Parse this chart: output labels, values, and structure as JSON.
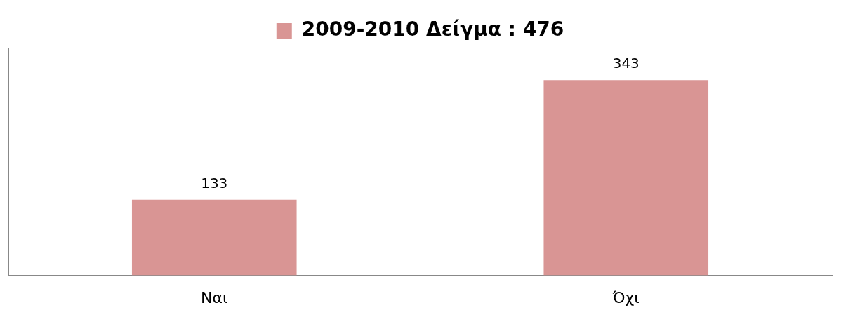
{
  "chart_data": {
    "type": "bar",
    "categories": [
      "Ναι",
      "Όχι"
    ],
    "series": [
      {
        "name": "2009-2010 Δείγμα : 476",
        "color": "#d99594",
        "values": [
          133,
          343
        ]
      }
    ],
    "data_labels": true,
    "legend": "top",
    "grid": false,
    "tick_labels": "x"
  }
}
